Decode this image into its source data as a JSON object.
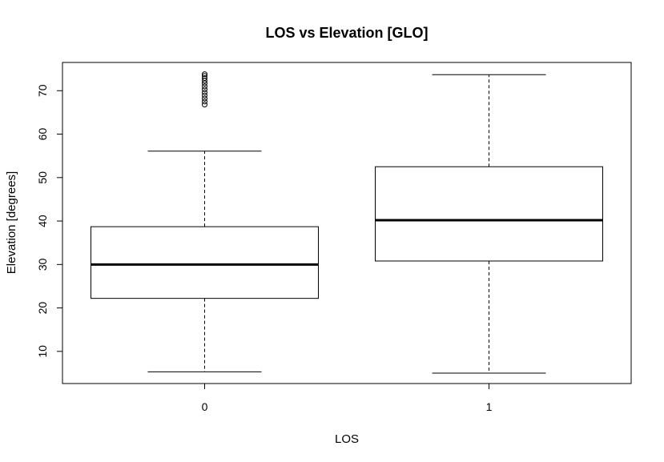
{
  "chart_data": {
    "type": "boxplot",
    "title": "LOS vs Elevation [GLO]",
    "xlabel": "LOS",
    "ylabel": "Elevation [degrees]",
    "ylim": [
      2.6,
      76.5
    ],
    "yticks": [
      "10",
      "20",
      "30",
      "40",
      "50",
      "60",
      "70"
    ],
    "categories": [
      "0",
      "1"
    ],
    "grid": false,
    "boxes": [
      {
        "category": "0",
        "whisker_low": 5.3,
        "q1": 22.2,
        "median": 30.0,
        "q3": 38.7,
        "whisker_high": 56.1,
        "outliers": [
          66.8,
          67.5,
          68.2,
          68.9,
          69.6,
          70.3,
          71.0,
          71.7,
          72.3,
          72.9,
          73.4,
          73.8
        ]
      },
      {
        "category": "1",
        "whisker_low": 5.0,
        "q1": 30.8,
        "median": 40.2,
        "q3": 52.5,
        "whisker_high": 73.7,
        "outliers": []
      }
    ]
  }
}
